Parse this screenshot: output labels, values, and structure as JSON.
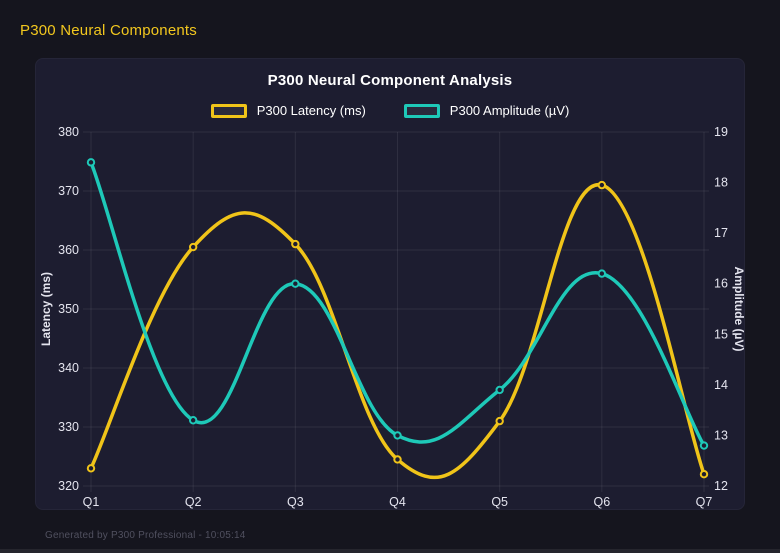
{
  "page": {
    "header_title": "P300 Neural Components",
    "footer": "Generated by P300 Professional - 10:05:14"
  },
  "colors": {
    "background": "#15151e",
    "panel": "#1d1d30",
    "latency": "#f0c419",
    "amplitude": "#1ec9b8",
    "grid": "rgba(255,255,255,0.08)",
    "tick_text": "#e4e4ee",
    "title_text": "#ffffff",
    "header_text": "#f2c71e",
    "footer_text": "#50505f"
  },
  "chart_data": {
    "type": "line",
    "title": "P300 Neural Component Analysis",
    "categories": [
      "Q1",
      "Q2",
      "Q3",
      "Q4",
      "Q5",
      "Q6",
      "Q7"
    ],
    "series": [
      {
        "name": "P300 Latency (ms)",
        "axis": "left",
        "color": "#f0c419",
        "values": [
          323,
          360.5,
          361,
          324.5,
          331,
          371,
          322
        ]
      },
      {
        "name": "P300 Amplitude (µV)",
        "axis": "right",
        "color": "#1ec9b8",
        "values": [
          18.4,
          13.3,
          16.0,
          13.0,
          13.9,
          16.2,
          12.8
        ]
      }
    ],
    "left_axis": {
      "label": "Latency (ms)",
      "min": 320,
      "max": 380,
      "ticks": [
        320,
        330,
        340,
        350,
        360,
        370,
        380
      ]
    },
    "right_axis": {
      "label": "Amplitude (µV)",
      "min": 12,
      "max": 19,
      "ticks": [
        12,
        13,
        14,
        15,
        16,
        17,
        18,
        19
      ]
    },
    "grid": true,
    "smooth": true,
    "legend_position": "top"
  }
}
